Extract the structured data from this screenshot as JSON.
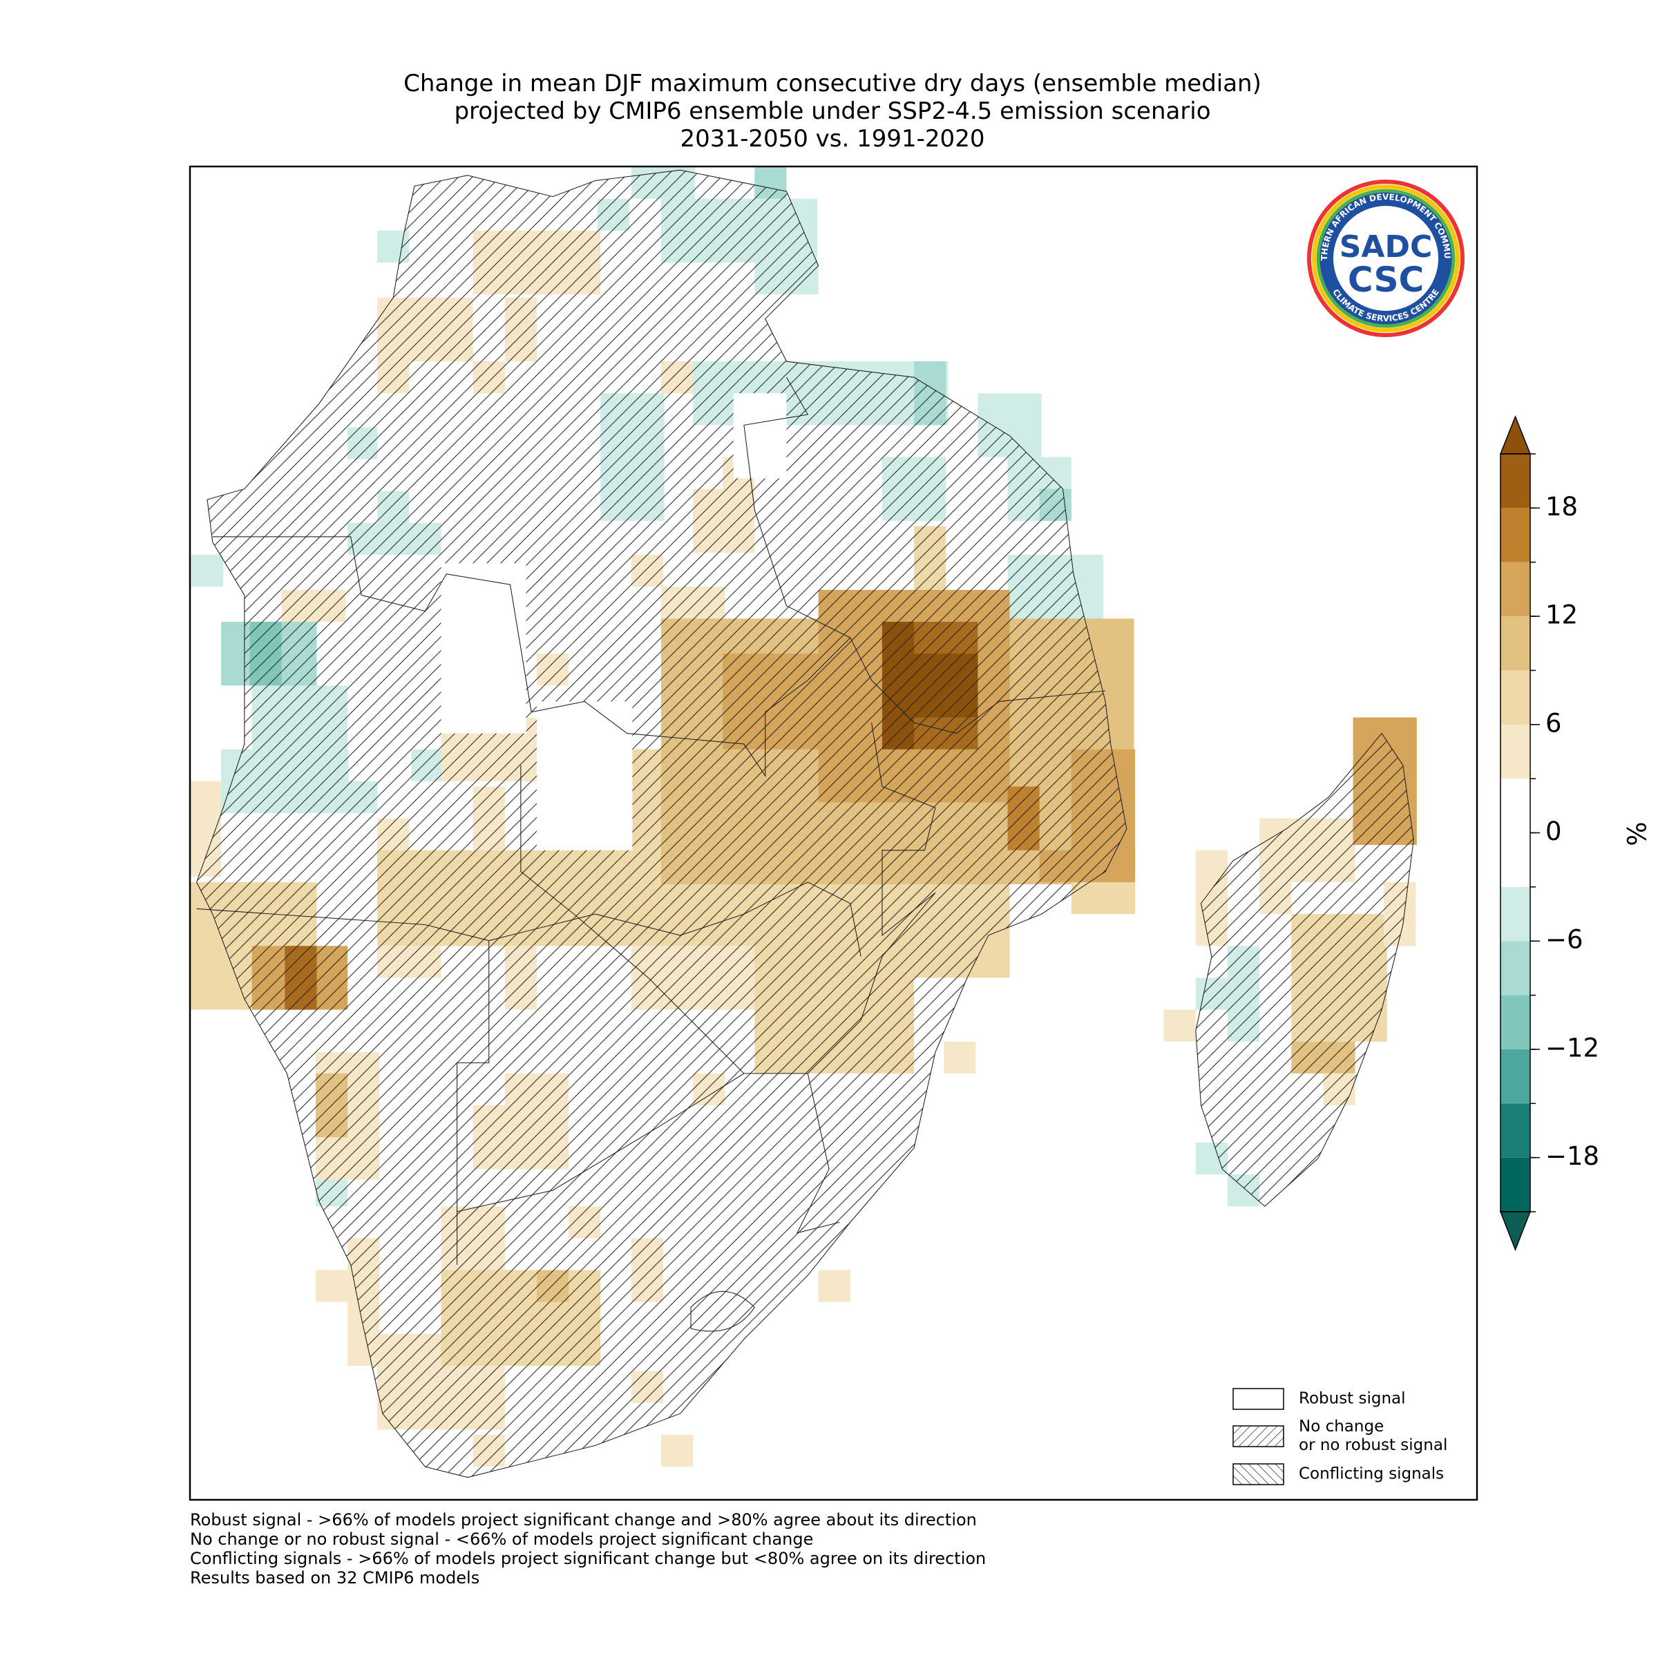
{
  "title": [
    "Change in mean DJF maximum consecutive dry days (ensemble median)",
    "projected by CMIP6 ensemble under SSP2-4.5 emission scenario",
    "2031-2050 vs. 1991-2020"
  ],
  "colorbar": {
    "label": "%",
    "levels": [
      -21,
      -18,
      -15,
      -12,
      -9,
      -6,
      -3,
      0,
      3,
      6,
      9,
      12,
      15,
      18,
      21
    ],
    "colors": [
      "#01665e",
      "#1c7f76",
      "#4ea79c",
      "#80c6bb",
      "#a9dbd2",
      "#d0ece7",
      "#ffffff",
      "#ffffff",
      "#f6e7c8",
      "#efd9a9",
      "#e3c180",
      "#d4a55a",
      "#bf812d",
      "#9e5e14"
    ],
    "under_color": "#0f5e56",
    "over_color": "#8c510a",
    "ticks": [
      {
        "value": -18,
        "label": "−18"
      },
      {
        "value": -12,
        "label": "−12"
      },
      {
        "value": -6,
        "label": "−6"
      },
      0,
      6,
      12,
      18
    ]
  },
  "legend": [
    {
      "label_lines": [
        "Robust signal"
      ],
      "hatch": "none"
    },
    {
      "label_lines": [
        "No change",
        "or no robust signal"
      ],
      "hatch": "forward"
    },
    {
      "label_lines": [
        "Conflicting signals"
      ],
      "hatch": "back"
    }
  ],
  "footnotes": [
    "Robust signal - >66% of models project significant change and >80% agree about its direction",
    "No change or no robust signal - <66% of models project significant change",
    "Conflicting signals - >66% of models project significant change but <80% agree on its direction",
    "Results based on 32 CMIP6 models"
  ],
  "logo": {
    "ring_top": "SOUTHERN AFRICAN DEVELOPMENT COMMUNITY",
    "ring_bottom": "CLIMATE SERVICES CENTRE",
    "top": "SADC",
    "bottom": "CSC"
  }
}
